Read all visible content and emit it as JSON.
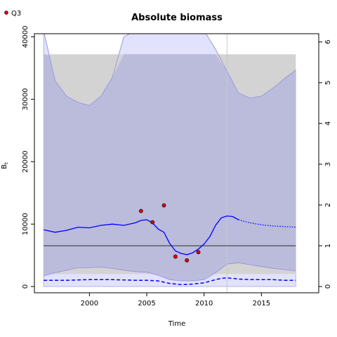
{
  "chart_data": {
    "type": "line",
    "title": "Absolute biomass",
    "xlabel": "Time",
    "ylabel": "B",
    "ylabel_subscript": "t",
    "xlim": [
      1995.2,
      2020.0
    ],
    "ylim": [
      -1000,
      40500
    ],
    "x_ticks": [
      2000,
      2005,
      2010,
      2015
    ],
    "y_ticks": [
      0,
      10000,
      20000,
      30000,
      40000
    ],
    "y2_ticks": [
      0,
      1,
      2,
      3,
      4,
      5,
      6
    ],
    "y2_scale_per_unit": 6530,
    "reference_vline_x": 2012,
    "reference_hline_y": 6530,
    "legend": {
      "position": "top-left",
      "label": "Q3"
    },
    "colors": {
      "estimate": "#0000ff",
      "ci_band": "#b9b9dc",
      "ci_band_edge": "#9090e0",
      "outer_ci": "#e2e2fc",
      "gray_band": "#d3d3d3",
      "hline": "#555555",
      "vline": "#c8c8c8",
      "points": "#dd0000"
    },
    "series": [
      {
        "name": "Q3",
        "kind": "observations",
        "x": [
          2004.5,
          2005.5,
          2006.5,
          2007.5,
          2008.5,
          2009.5
        ],
        "y": [
          12100,
          10300,
          13000,
          4800,
          4200,
          5500
        ]
      },
      {
        "kind": "estimate",
        "x": [
          1996,
          1997,
          1998,
          1999,
          2000,
          2001,
          2002,
          2003,
          2004,
          2004.5,
          2005,
          2005.5,
          2006,
          2006.5,
          2007,
          2007.5,
          2008,
          2008.5,
          2009,
          2009.5,
          2010,
          2010.5,
          2011,
          2011.5,
          2012,
          2012.5,
          2013
        ],
        "y": [
          9100,
          8700,
          9000,
          9500,
          9400,
          9800,
          10000,
          9800,
          10200,
          10600,
          10700,
          10200,
          9200,
          8700,
          6900,
          5700,
          5300,
          5100,
          5400,
          6000,
          6800,
          8000,
          9800,
          11000,
          11300,
          11200,
          10700
        ]
      },
      {
        "kind": "forecast",
        "x": [
          2013,
          2014,
          2015,
          2016,
          2017,
          2018
        ],
        "y": [
          10700,
          10200,
          9900,
          9700,
          9600,
          9500
        ]
      },
      {
        "kind": "ci_upper",
        "x": [
          1996,
          1996.5,
          1997,
          1998,
          1999,
          2000,
          2001,
          2002,
          2003,
          2004,
          2005,
          2006,
          2007,
          2008,
          2009,
          2010,
          2011,
          2012,
          2013,
          2014,
          2015,
          2016,
          2017,
          2018
        ],
        "y": [
          41000,
          37000,
          33000,
          30500,
          29500,
          29000,
          30500,
          33500,
          40000,
          41000,
          41000,
          41000,
          41000,
          41000,
          41000,
          41000,
          38000,
          34500,
          31000,
          30200,
          30500,
          31800,
          33300,
          34700
        ]
      },
      {
        "kind": "ci_lower",
        "x": [
          1996,
          1997,
          1998,
          1999,
          2000,
          2001,
          2002,
          2003,
          2004,
          2005,
          2006,
          2007,
          2008,
          2009,
          2010,
          2011,
          2012,
          2013,
          2014,
          2015,
          2016,
          2017,
          2018
        ],
        "y": [
          1700,
          2200,
          2600,
          3000,
          3000,
          3100,
          2900,
          2600,
          2400,
          2300,
          1800,
          1100,
          900,
          900,
          1100,
          2200,
          3600,
          3800,
          3500,
          3200,
          2900,
          2700,
          2500
        ]
      },
      {
        "kind": "gray_band",
        "x_range": [
          1996,
          2018
        ],
        "y_range": [
          2000,
          37200
        ]
      },
      {
        "kind": "lower_dashed",
        "x": [
          1996,
          1998,
          2000,
          2002,
          2004,
          2005,
          2006,
          2007,
          2008,
          2009,
          2010,
          2011,
          2011.5,
          2012,
          2013,
          2014,
          2015,
          2016,
          2017,
          2018
        ],
        "y": [
          1000,
          1000,
          1100,
          1100,
          1000,
          1000,
          900,
          500,
          300,
          400,
          600,
          1100,
          1300,
          1400,
          1200,
          1100,
          1100,
          1100,
          1000,
          1000
        ]
      }
    ]
  }
}
